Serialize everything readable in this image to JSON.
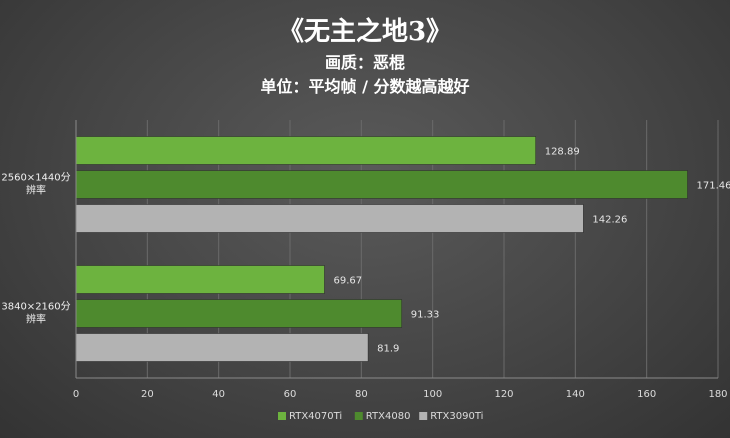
{
  "chart_data": {
    "type": "bar",
    "orientation": "horizontal",
    "title": "《无主之地3》",
    "subtitle_lines": [
      "画质：恶棍",
      "单位：平均帧 / 分数越高越好"
    ],
    "categories": [
      [
        "2560×1440分",
        "辨率"
      ],
      [
        "3840×2160分",
        "辨率"
      ]
    ],
    "series": [
      {
        "name": "RTX4070Ti",
        "color": "#6db33f",
        "values": [
          128.89,
          69.67
        ]
      },
      {
        "name": "RTX4080",
        "color": "#4e8a2e",
        "values": [
          171.46,
          91.33
        ]
      },
      {
        "name": "RTX3090Ti",
        "color": "#b3b3b3",
        "values": [
          142.26,
          81.9
        ]
      }
    ],
    "xlim": [
      0,
      180
    ],
    "xticks": [
      0,
      20,
      40,
      60,
      80,
      100,
      120,
      140,
      160,
      180
    ],
    "grid": true,
    "legend_position": "bottom"
  }
}
